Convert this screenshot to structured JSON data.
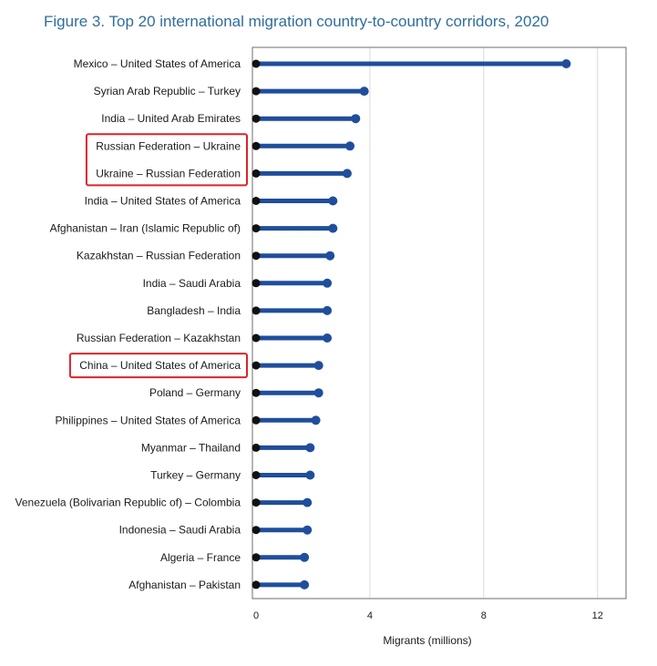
{
  "figure_title": "Figure 3. Top 20 international migration country-to-country corridors, 2020",
  "colors": {
    "title": "#2f6e9e",
    "stem": "#1f4e9c",
    "endpoint": "#1f4e9c",
    "origin_dot": "#111111",
    "highlight_box": "#d9262b",
    "grid": "#d9d9d9"
  },
  "highlighted_categories": [
    "Russian Federation – Ukraine",
    "Ukraine – Russian Federation",
    "China – United States of America"
  ],
  "chart_data": {
    "type": "lollipop",
    "orientation": "horizontal",
    "title": "Figure 3. Top 20 international migration country-to-country corridors, 2020",
    "xlabel": "Migrants (millions)",
    "ylabel": "",
    "xlim": [
      0,
      13
    ],
    "xticks": [
      0,
      4,
      8,
      12
    ],
    "grid": "vertical",
    "categories": [
      "Mexico – United States of America",
      "Syrian Arab Republic – Turkey",
      "India – United Arab Emirates",
      "Russian Federation – Ukraine",
      "Ukraine – Russian Federation",
      "India – United States of America",
      "Afghanistan – Iran (Islamic Republic of)",
      "Kazakhstan – Russian Federation",
      "India – Saudi Arabia",
      "Bangladesh – India",
      "Russian Federation – Kazakhstan",
      "China – United States of America",
      "Poland – Germany",
      "Philippines – United States of America",
      "Myanmar – Thailand",
      "Turkey – Germany",
      "Venezuela (Bolivarian Republic of) – Colombia",
      "Indonesia – Saudi Arabia",
      "Algeria – France",
      "Afghanistan – Pakistan"
    ],
    "values": [
      10.9,
      3.8,
      3.5,
      3.3,
      3.2,
      2.7,
      2.7,
      2.6,
      2.5,
      2.5,
      2.5,
      2.2,
      2.2,
      2.1,
      1.9,
      1.9,
      1.8,
      1.8,
      1.7,
      1.7
    ]
  }
}
